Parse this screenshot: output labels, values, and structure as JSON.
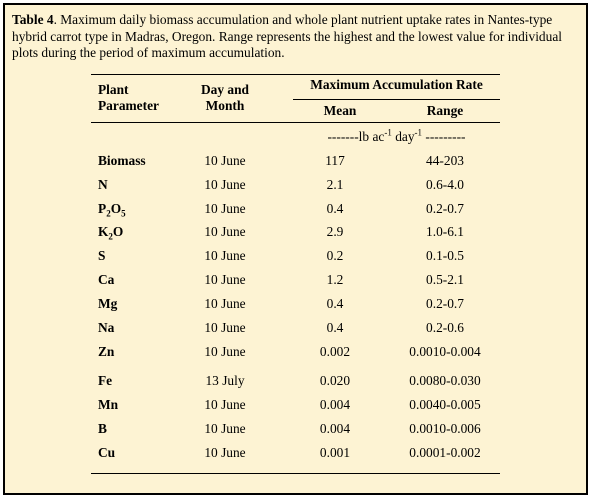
{
  "caption": {
    "label": "Table 4",
    "text": ". Maximum daily biomass accumulation and whole plant nutrient uptake rates in Nantes-type hybrid carrot type in Madras, Oregon.  Range represents the highest and the lowest value for individual plots during the period of maximum accumulation."
  },
  "header": {
    "col1_line1": "Plant",
    "col1_line2": "Parameter",
    "col2_line1": "Day and",
    "col2_line2": "Month",
    "group": "Maximum Accumulation Rate",
    "mean": "Mean",
    "range": "Range"
  },
  "units": {
    "prefix": "-------lb ac",
    "sup1": "-1",
    "mid": " day",
    "sup2": "-1",
    "suffix": " ---------"
  },
  "rows": [
    {
      "param": "Biomass",
      "date": "10 June",
      "mean": "117",
      "range": "44-203"
    },
    {
      "param": "N",
      "date": "10 June",
      "mean": "2.1",
      "range": "0.6-4.0"
    },
    {
      "param": "P",
      "sub1": "2",
      "param_mid": "O",
      "sub2": "5",
      "date": "10 June",
      "mean": "0.4",
      "range": "0.2-0.7"
    },
    {
      "param": "K",
      "sub1": "2",
      "param_mid": "O",
      "date": "10 June",
      "mean": "2.9",
      "range": "1.0-6.1"
    },
    {
      "param": "S",
      "date": "10 June",
      "mean": "0.2",
      "range": "0.1-0.5"
    },
    {
      "param": "Ca",
      "date": "10 June",
      "mean": "1.2",
      "range": "0.5-2.1"
    },
    {
      "param": "Mg",
      "date": "10 June",
      "mean": "0.4",
      "range": "0.2-0.7"
    },
    {
      "param": "Na",
      "date": "10 June",
      "mean": "0.4",
      "range": "0.2-0.6"
    },
    {
      "param": "Zn",
      "date": "10 June",
      "mean": "0.002",
      "range": "0.0010-0.004"
    },
    {
      "param": "Fe",
      "date": "13 July",
      "mean": "0.020",
      "range": "0.0080-0.030"
    },
    {
      "param": "Mn",
      "date": "10 June",
      "mean": "0.004",
      "range": "0.0040-0.005"
    },
    {
      "param": "B",
      "date": "10 June",
      "mean": "0.004",
      "range": "0.0010-0.006"
    },
    {
      "param": "Cu",
      "date": "10 June",
      "mean": "0.001",
      "range": "0.0001-0.002"
    }
  ]
}
